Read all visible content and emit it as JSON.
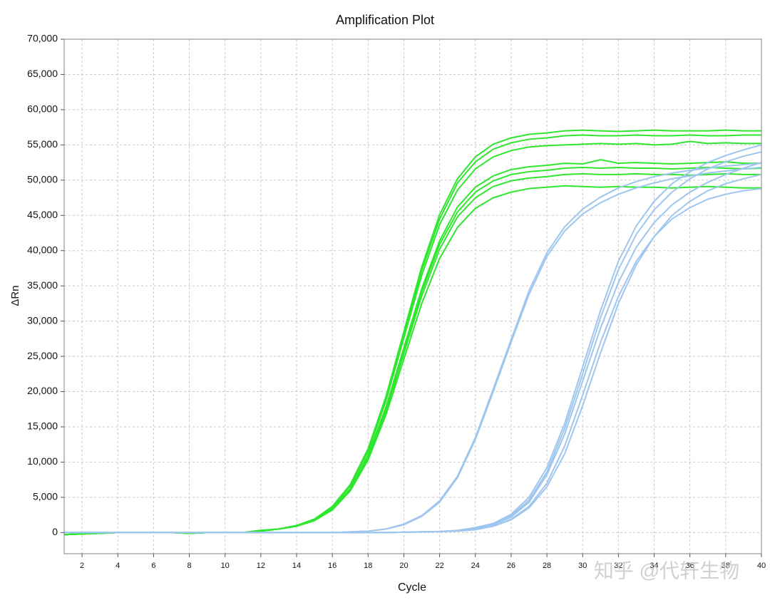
{
  "chart_data": {
    "type": "line",
    "title": "Amplification Plot",
    "x_label": "Cycle",
    "y_label": "ΔRn",
    "watermark": "知乎 @代轩生物",
    "grid": true,
    "xlim": [
      1,
      40
    ],
    "ylim": [
      -3000,
      70000
    ],
    "xticks": [
      2,
      4,
      6,
      8,
      10,
      12,
      14,
      16,
      18,
      20,
      22,
      24,
      26,
      28,
      30,
      32,
      34,
      36,
      38,
      40
    ],
    "yticks": [
      0,
      {
        "value": 5000,
        "label": "5,000"
      },
      {
        "value": 10000,
        "label": "10,000"
      },
      {
        "value": 15000,
        "label": "15,000"
      },
      {
        "value": 20000,
        "label": "20,000"
      },
      {
        "value": 25000,
        "label": "25,000"
      },
      {
        "value": 30000,
        "label": "30,000"
      },
      {
        "value": 35000,
        "label": "35,000"
      },
      {
        "value": 40000,
        "label": "40,000"
      },
      {
        "value": 45000,
        "label": "45,000"
      },
      {
        "value": 50000,
        "label": "50,000"
      },
      {
        "value": 55000,
        "label": "55,000"
      },
      {
        "value": 60000,
        "label": "60,000"
      },
      {
        "value": 65000,
        "label": "65,000"
      },
      {
        "value": 70000,
        "label": "70,000"
      }
    ],
    "x": [
      1,
      2,
      3,
      4,
      5,
      6,
      7,
      8,
      9,
      10,
      11,
      12,
      13,
      14,
      15,
      16,
      17,
      18,
      19,
      20,
      21,
      22,
      23,
      24,
      25,
      26,
      27,
      28,
      29,
      30,
      31,
      32,
      33,
      34,
      35,
      36,
      37,
      38,
      39,
      40
    ],
    "series": [
      {
        "color": "#2fe62f",
        "values": [
          -300,
          -200,
          -100,
          0,
          0,
          0,
          0,
          -100,
          0,
          0,
          0,
          300,
          500,
          1000,
          1900,
          3700,
          6800,
          11900,
          19300,
          28500,
          37700,
          45100,
          50200,
          53300,
          55100,
          56000,
          56500,
          56700,
          57000,
          57100,
          57000,
          56900,
          57000,
          57100,
          57000,
          57000,
          57000,
          57100,
          57000,
          57000
        ]
      },
      {
        "color": "#2fe62f",
        "values": [
          -300,
          -200,
          -100,
          0,
          0,
          0,
          0,
          -100,
          0,
          0,
          0,
          300,
          500,
          1000,
          1900,
          3700,
          6700,
          11800,
          19100,
          28200,
          37200,
          44500,
          49600,
          52600,
          54400,
          55300,
          55800,
          56000,
          56300,
          56400,
          56300,
          56300,
          56400,
          56300,
          56300,
          56400,
          56300,
          56300,
          56400,
          56400
        ]
      },
      {
        "color": "#2fe62f",
        "values": [
          -300,
          -200,
          -100,
          0,
          0,
          0,
          0,
          -100,
          0,
          0,
          0,
          300,
          500,
          1000,
          1900,
          3600,
          6600,
          11500,
          18700,
          27600,
          36500,
          43700,
          48600,
          51600,
          53300,
          54200,
          54700,
          54900,
          55000,
          55100,
          55200,
          55100,
          55200,
          55000,
          55100,
          55500,
          55200,
          55300,
          55200,
          55200
        ]
      },
      {
        "color": "#2fe62f",
        "values": [
          -300,
          -200,
          -100,
          0,
          0,
          0,
          0,
          -100,
          0,
          0,
          0,
          300,
          500,
          900,
          1800,
          3400,
          6200,
          11000,
          17800,
          26200,
          34600,
          41400,
          46200,
          49000,
          50600,
          51500,
          51900,
          52100,
          52400,
          52300,
          52900,
          52400,
          52500,
          52400,
          52300,
          52400,
          52500,
          52600,
          52400,
          52400
        ]
      },
      {
        "color": "#2fe62f",
        "values": [
          -300,
          -200,
          -100,
          0,
          0,
          0,
          0,
          -100,
          0,
          0,
          0,
          200,
          500,
          900,
          1800,
          3400,
          6200,
          10800,
          17500,
          25900,
          34200,
          40900,
          45500,
          48300,
          49900,
          50800,
          51200,
          51400,
          51700,
          51800,
          51700,
          51800,
          51700,
          51700,
          51600,
          51700,
          51800,
          51700,
          51600,
          51700
        ]
      },
      {
        "color": "#2fe62f",
        "values": [
          -300,
          -200,
          -100,
          0,
          0,
          0,
          0,
          -100,
          0,
          0,
          0,
          200,
          500,
          900,
          1700,
          3300,
          6000,
          10600,
          17200,
          25400,
          33600,
          40200,
          44800,
          47500,
          49100,
          49900,
          50300,
          50500,
          50800,
          50900,
          50800,
          50800,
          50900,
          50800,
          50800,
          50700,
          50800,
          50900,
          50800,
          50800
        ]
      },
      {
        "color": "#2fe62f",
        "values": [
          -300,
          -200,
          -100,
          0,
          0,
          0,
          0,
          -100,
          0,
          0,
          0,
          200,
          500,
          900,
          1700,
          3200,
          5900,
          10300,
          16700,
          24600,
          32500,
          38900,
          43300,
          46000,
          47500,
          48300,
          48800,
          49000,
          49200,
          49100,
          49000,
          49100,
          49000,
          49000,
          48900,
          49000,
          49100,
          49000,
          48900,
          48900
        ]
      },
      {
        "color": "#9ec6ee",
        "values": [
          0,
          0,
          0,
          0,
          0,
          0,
          0,
          0,
          0,
          0,
          0,
          0,
          0,
          0,
          0,
          0,
          100,
          200,
          500,
          1100,
          2300,
          4300,
          7800,
          13200,
          20000,
          27000,
          33800,
          39200,
          42800,
          45200,
          46800,
          48000,
          48900,
          49600,
          50200,
          50600,
          51000,
          51300,
          51600,
          51800
        ]
      },
      {
        "color": "#9ec6ee",
        "values": [
          0,
          0,
          0,
          0,
          0,
          0,
          0,
          0,
          0,
          0,
          0,
          0,
          0,
          0,
          0,
          0,
          100,
          200,
          500,
          1200,
          2400,
          4500,
          8000,
          13500,
          20400,
          27400,
          34300,
          39700,
          43400,
          45900,
          47600,
          48900,
          49800,
          50500,
          51000,
          51400,
          51700,
          52000,
          52200,
          52400
        ]
      },
      {
        "color": "#9ec6ee",
        "values": [
          0,
          0,
          0,
          0,
          0,
          0,
          0,
          0,
          0,
          0,
          0,
          0,
          0,
          0,
          0,
          0,
          0,
          0,
          0,
          50,
          100,
          150,
          300,
          600,
          1100,
          2200,
          4300,
          8200,
          14000,
          21500,
          29000,
          35500,
          40500,
          44000,
          46500,
          48300,
          49700,
          50800,
          51700,
          52500
        ]
      },
      {
        "color": "#9ec6ee",
        "values": [
          0,
          0,
          0,
          0,
          0,
          0,
          0,
          0,
          0,
          0,
          0,
          0,
          0,
          0,
          0,
          0,
          0,
          0,
          0,
          50,
          100,
          150,
          300,
          700,
          1300,
          2600,
          5000,
          9200,
          15500,
          23500,
          31500,
          38500,
          43500,
          47000,
          49500,
          51200,
          52500,
          53500,
          54300,
          55000
        ]
      },
      {
        "color": "#9ec6ee",
        "values": [
          0,
          0,
          0,
          0,
          0,
          0,
          0,
          0,
          0,
          0,
          0,
          0,
          0,
          0,
          0,
          0,
          0,
          0,
          0,
          50,
          100,
          150,
          200,
          400,
          900,
          1800,
          3500,
          6500,
          11200,
          18000,
          25500,
          32500,
          38000,
          42000,
          45000,
          47000,
          48500,
          49500,
          50200,
          50800
        ]
      },
      {
        "color": "#9ec6ee",
        "values": [
          0,
          0,
          0,
          0,
          0,
          0,
          0,
          0,
          0,
          0,
          0,
          0,
          0,
          0,
          0,
          0,
          0,
          0,
          0,
          50,
          100,
          150,
          300,
          600,
          1200,
          2400,
          4600,
          8600,
          14800,
          22500,
          30500,
          37300,
          42300,
          45800,
          48300,
          50200,
          51600,
          52600,
          53400,
          54000
        ]
      },
      {
        "color": "#9ec6ee",
        "values": [
          0,
          0,
          0,
          0,
          0,
          0,
          0,
          0,
          0,
          0,
          0,
          0,
          0,
          0,
          0,
          0,
          0,
          0,
          0,
          50,
          100,
          150,
          200,
          500,
          900,
          1900,
          3700,
          7000,
          12300,
          19500,
          27000,
          33500,
          38500,
          42000,
          44500,
          46100,
          47300,
          48000,
          48500,
          48800
        ]
      }
    ]
  }
}
